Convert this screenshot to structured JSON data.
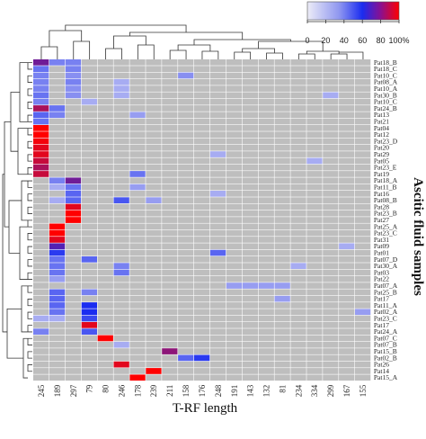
{
  "chart_data": {
    "type": "heatmap",
    "xlabel": "T-RF length",
    "ylabel": "Ascitic fluid samples",
    "columns": [
      "245",
      "189",
      "297",
      "79",
      "80",
      "246",
      "178",
      "239",
      "211",
      "158",
      "176",
      "248",
      "191",
      "143",
      "132",
      "81",
      "234",
      "334",
      "299",
      "167",
      "155"
    ],
    "rows": [
      "Pat18_B",
      "Pat18_C",
      "Pat10_C",
      "Pat08_A",
      "Pat10_A",
      "Pat30_B",
      "Pat10_C",
      "Pat24_B",
      "Pat13",
      "Pat21",
      "Pat04",
      "Pat12",
      "Pat23_D",
      "Pat20",
      "Pat29",
      "Pat05",
      "Pat23_E",
      "Pat19",
      "Pat18_A",
      "Pat11_B",
      "Pat16",
      "Pat08_B",
      "Pat28",
      "Pat23_B",
      "Pat27",
      "Pat25_A",
      "Pat23_C",
      "Pat31",
      "Pat09",
      "Pat01",
      "Pat07_D",
      "Pat30_A",
      "Pat03",
      "Pat22",
      "Pat07_A",
      "Pat25_B",
      "Pat17",
      "Pat11_A",
      "Pat02_A",
      "Pat23_C",
      "Pat17",
      "Pat24_A",
      "Pat07_C",
      "Pat07_B",
      "Pat15_B",
      "Pat02_B",
      "Pat26",
      "Pat14",
      "Pat15_A"
    ],
    "values": [
      [
        75,
        30,
        30,
        0,
        0,
        0,
        0,
        0,
        0,
        0,
        0,
        0,
        0,
        0,
        0,
        0,
        0,
        0,
        0,
        0,
        0
      ],
      [
        35,
        0,
        30,
        0,
        0,
        0,
        0,
        0,
        0,
        0,
        0,
        0,
        0,
        0,
        0,
        0,
        0,
        0,
        0,
        0,
        0
      ],
      [
        30,
        0,
        25,
        0,
        0,
        0,
        0,
        0,
        0,
        25,
        0,
        0,
        0,
        0,
        0,
        0,
        0,
        0,
        0,
        0,
        0
      ],
      [
        30,
        0,
        30,
        0,
        0,
        15,
        0,
        0,
        0,
        0,
        0,
        0,
        0,
        0,
        0,
        0,
        0,
        0,
        0,
        0,
        0
      ],
      [
        30,
        0,
        25,
        0,
        0,
        15,
        0,
        0,
        0,
        0,
        0,
        0,
        0,
        0,
        0,
        0,
        0,
        0,
        0,
        0,
        0
      ],
      [
        35,
        0,
        25,
        0,
        0,
        15,
        0,
        0,
        0,
        0,
        0,
        0,
        0,
        0,
        0,
        0,
        0,
        0,
        15,
        0,
        0
      ],
      [
        30,
        0,
        0,
        15,
        0,
        0,
        0,
        0,
        0,
        0,
        0,
        0,
        0,
        0,
        0,
        0,
        0,
        0,
        0,
        0,
        0
      ],
      [
        85,
        35,
        0,
        0,
        0,
        0,
        0,
        0,
        0,
        0,
        0,
        0,
        0,
        0,
        0,
        0,
        0,
        0,
        0,
        0,
        0
      ],
      [
        40,
        30,
        0,
        0,
        0,
        0,
        20,
        0,
        0,
        0,
        0,
        0,
        0,
        0,
        0,
        0,
        0,
        0,
        0,
        0,
        0
      ],
      [
        35,
        0,
        0,
        0,
        0,
        0,
        0,
        0,
        0,
        0,
        0,
        0,
        0,
        0,
        0,
        0,
        0,
        0,
        0,
        0,
        0
      ],
      [
        100,
        0,
        0,
        0,
        0,
        0,
        0,
        0,
        0,
        0,
        0,
        0,
        0,
        0,
        0,
        0,
        0,
        0,
        0,
        0,
        0
      ],
      [
        100,
        0,
        0,
        0,
        0,
        0,
        0,
        0,
        0,
        0,
        0,
        0,
        0,
        0,
        0,
        0,
        0,
        0,
        0,
        0,
        0
      ],
      [
        98,
        0,
        0,
        0,
        0,
        0,
        0,
        0,
        0,
        0,
        0,
        0,
        0,
        0,
        0,
        0,
        0,
        0,
        0,
        0,
        0
      ],
      [
        95,
        0,
        0,
        0,
        0,
        0,
        0,
        0,
        0,
        0,
        0,
        0,
        0,
        0,
        0,
        0,
        0,
        0,
        0,
        0,
        0
      ],
      [
        95,
        0,
        0,
        0,
        0,
        0,
        0,
        0,
        0,
        0,
        0,
        15,
        0,
        0,
        0,
        0,
        0,
        0,
        0,
        0,
        0
      ],
      [
        90,
        0,
        0,
        0,
        0,
        0,
        0,
        0,
        0,
        0,
        0,
        0,
        0,
        0,
        0,
        0,
        0,
        15,
        0,
        0,
        0
      ],
      [
        85,
        0,
        0,
        0,
        0,
        0,
        0,
        0,
        0,
        0,
        0,
        0,
        0,
        0,
        0,
        0,
        0,
        0,
        0,
        0,
        0
      ],
      [
        90,
        0,
        0,
        0,
        0,
        0,
        35,
        0,
        0,
        0,
        0,
        0,
        0,
        0,
        0,
        0,
        0,
        0,
        0,
        0,
        0
      ],
      [
        0,
        30,
        75,
        0,
        0,
        0,
        0,
        0,
        0,
        0,
        0,
        0,
        0,
        0,
        0,
        0,
        0,
        0,
        0,
        0,
        0
      ],
      [
        0,
        15,
        35,
        0,
        0,
        0,
        20,
        0,
        0,
        0,
        0,
        0,
        0,
        0,
        0,
        0,
        0,
        0,
        0,
        0,
        0
      ],
      [
        0,
        0,
        40,
        0,
        0,
        0,
        0,
        0,
        0,
        0,
        0,
        15,
        0,
        0,
        0,
        0,
        0,
        0,
        0,
        0,
        0
      ],
      [
        0,
        15,
        40,
        0,
        0,
        45,
        0,
        20,
        0,
        0,
        0,
        0,
        0,
        0,
        0,
        0,
        0,
        0,
        0,
        0,
        0
      ],
      [
        0,
        0,
        95,
        0,
        0,
        0,
        0,
        0,
        0,
        0,
        0,
        0,
        0,
        0,
        0,
        0,
        0,
        0,
        0,
        0,
        0
      ],
      [
        0,
        0,
        100,
        0,
        0,
        0,
        0,
        0,
        0,
        0,
        0,
        0,
        0,
        0,
        0,
        0,
        0,
        0,
        0,
        0,
        0
      ],
      [
        0,
        0,
        100,
        0,
        0,
        0,
        0,
        0,
        0,
        0,
        0,
        0,
        0,
        0,
        0,
        0,
        0,
        0,
        0,
        0,
        0
      ],
      [
        0,
        100,
        0,
        0,
        0,
        0,
        0,
        0,
        0,
        0,
        0,
        0,
        0,
        0,
        0,
        0,
        0,
        0,
        0,
        0,
        0
      ],
      [
        0,
        100,
        0,
        0,
        0,
        0,
        0,
        0,
        0,
        0,
        0,
        0,
        0,
        0,
        0,
        0,
        0,
        0,
        0,
        0,
        0
      ],
      [
        0,
        95,
        0,
        0,
        0,
        0,
        0,
        0,
        0,
        0,
        0,
        0,
        0,
        0,
        0,
        0,
        0,
        0,
        0,
        0,
        0
      ],
      [
        0,
        70,
        0,
        0,
        0,
        0,
        0,
        0,
        0,
        0,
        0,
        0,
        0,
        0,
        0,
        0,
        0,
        0,
        0,
        15,
        0
      ],
      [
        0,
        55,
        0,
        0,
        0,
        0,
        0,
        0,
        0,
        0,
        0,
        40,
        0,
        0,
        0,
        0,
        0,
        0,
        0,
        0,
        0
      ],
      [
        0,
        35,
        0,
        40,
        0,
        0,
        0,
        0,
        0,
        0,
        0,
        0,
        0,
        0,
        0,
        0,
        0,
        0,
        0,
        0,
        0
      ],
      [
        0,
        35,
        0,
        0,
        0,
        30,
        0,
        0,
        0,
        0,
        0,
        0,
        0,
        0,
        0,
        0,
        15,
        0,
        0,
        0,
        0
      ],
      [
        0,
        35,
        0,
        0,
        0,
        35,
        0,
        0,
        0,
        0,
        0,
        0,
        0,
        0,
        0,
        0,
        0,
        0,
        0,
        0,
        0
      ],
      [
        0,
        20,
        0,
        0,
        0,
        0,
        0,
        0,
        0,
        0,
        0,
        0,
        0,
        0,
        0,
        0,
        0,
        0,
        0,
        0,
        0
      ],
      [
        0,
        0,
        0,
        0,
        0,
        0,
        0,
        0,
        0,
        0,
        0,
        0,
        20,
        20,
        20,
        20,
        0,
        0,
        0,
        0,
        0
      ],
      [
        0,
        40,
        0,
        30,
        0,
        0,
        0,
        0,
        0,
        0,
        0,
        0,
        0,
        0,
        0,
        0,
        0,
        0,
        0,
        0,
        0
      ],
      [
        0,
        40,
        0,
        0,
        0,
        0,
        0,
        0,
        0,
        0,
        0,
        0,
        0,
        0,
        0,
        20,
        0,
        0,
        0,
        0,
        0
      ],
      [
        0,
        40,
        0,
        60,
        0,
        0,
        0,
        0,
        0,
        0,
        0,
        0,
        0,
        0,
        0,
        0,
        0,
        0,
        0,
        0,
        0
      ],
      [
        0,
        35,
        0,
        60,
        0,
        0,
        0,
        0,
        0,
        0,
        0,
        0,
        0,
        0,
        0,
        0,
        0,
        0,
        0,
        0,
        20
      ],
      [
        15,
        15,
        0,
        50,
        0,
        0,
        0,
        0,
        0,
        0,
        0,
        0,
        0,
        0,
        0,
        0,
        0,
        0,
        0,
        0,
        0
      ],
      [
        0,
        0,
        0,
        95,
        0,
        0,
        0,
        0,
        0,
        0,
        0,
        0,
        0,
        0,
        0,
        0,
        0,
        0,
        0,
        0,
        0
      ],
      [
        30,
        0,
        0,
        45,
        0,
        0,
        0,
        0,
        0,
        0,
        0,
        0,
        0,
        0,
        0,
        0,
        0,
        0,
        0,
        0,
        0
      ],
      [
        0,
        0,
        0,
        0,
        100,
        0,
        0,
        0,
        0,
        0,
        0,
        0,
        0,
        0,
        0,
        0,
        0,
        0,
        0,
        0,
        0
      ],
      [
        0,
        0,
        0,
        0,
        0,
        15,
        0,
        0,
        0,
        0,
        0,
        0,
        0,
        0,
        0,
        0,
        0,
        0,
        0,
        0,
        0
      ],
      [
        0,
        0,
        0,
        0,
        0,
        0,
        0,
        0,
        80,
        0,
        0,
        0,
        0,
        0,
        0,
        0,
        0,
        0,
        0,
        0,
        0
      ],
      [
        0,
        0,
        0,
        0,
        0,
        0,
        0,
        0,
        0,
        40,
        55,
        0,
        0,
        0,
        0,
        0,
        0,
        0,
        0,
        0,
        0
      ],
      [
        0,
        0,
        0,
        0,
        0,
        95,
        0,
        0,
        0,
        0,
        0,
        0,
        0,
        0,
        0,
        0,
        0,
        0,
        0,
        0,
        0
      ],
      [
        0,
        0,
        0,
        0,
        0,
        0,
        0,
        100,
        0,
        0,
        0,
        0,
        0,
        0,
        0,
        0,
        0,
        0,
        0,
        0,
        0
      ],
      [
        0,
        0,
        0,
        0,
        0,
        0,
        100,
        0,
        0,
        0,
        0,
        0,
        0,
        0,
        0,
        0,
        0,
        0,
        0,
        0,
        0
      ]
    ],
    "legend": {
      "ticks": [
        "0",
        "20",
        "40",
        "60",
        "80",
        "100%"
      ]
    },
    "colors": {
      "empty": "#bebebe",
      "low": "#d6d6f2",
      "mid": "#1a2cf0",
      "high": "#ff0000"
    }
  }
}
